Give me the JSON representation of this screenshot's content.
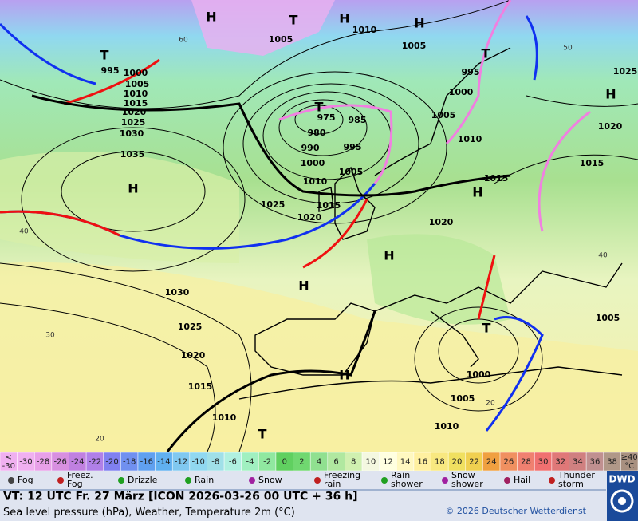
{
  "map": {
    "pressure_labels": [
      1005,
      1010,
      1005,
      995,
      1000,
      1005,
      1010,
      1015,
      1020,
      1025,
      1030,
      1035,
      975,
      985,
      980,
      990,
      995,
      1000,
      1005,
      1010,
      1015,
      1025,
      1020,
      1020,
      995,
      1000,
      1005,
      1010,
      1015,
      1020,
      1015,
      1025,
      1030,
      1025,
      1020,
      1015,
      1010,
      1000,
      1005,
      1010,
      1005
    ],
    "centers": [
      "H",
      "H",
      "H",
      "H",
      "H",
      "H",
      "H",
      "H",
      "H",
      "T",
      "T",
      "T",
      "T",
      "T",
      "T"
    ],
    "lat_labels": [
      60,
      50,
      40,
      40,
      30,
      20,
      20
    ]
  },
  "scale": {
    "low_label": "<",
    "high_label": "≥40",
    "high_unit": "°C",
    "cells": [
      {
        "value": -30,
        "color": "#f0b0f0"
      },
      {
        "value": -28,
        "color": "#e8a0e8"
      },
      {
        "value": -26,
        "color": "#d890e0"
      },
      {
        "value": -24,
        "color": "#c080e0"
      },
      {
        "value": -22,
        "color": "#b080e8"
      },
      {
        "value": -20,
        "color": "#8080f0"
      },
      {
        "value": -18,
        "color": "#7090f0"
      },
      {
        "value": -16,
        "color": "#60a0f0"
      },
      {
        "value": -14,
        "color": "#60b0f0"
      },
      {
        "value": -12,
        "color": "#80c8f0"
      },
      {
        "value": -10,
        "color": "#90d8f0"
      },
      {
        "value": -8,
        "color": "#a0e0e8"
      },
      {
        "value": -6,
        "color": "#b0f0e0"
      },
      {
        "value": -4,
        "color": "#a0f0c0"
      },
      {
        "value": -2,
        "color": "#90e8a0"
      },
      {
        "value": 0,
        "color": "#60d060"
      },
      {
        "value": 2,
        "color": "#70d870"
      },
      {
        "value": 4,
        "color": "#90e090"
      },
      {
        "value": 6,
        "color": "#b0e8a0"
      },
      {
        "value": 8,
        "color": "#d0f0b0"
      },
      {
        "value": 10,
        "color": "#f4f8e0"
      },
      {
        "value": 12,
        "color": "#ffffe0"
      },
      {
        "value": 14,
        "color": "#fff8c0"
      },
      {
        "value": 16,
        "color": "#fff0a0"
      },
      {
        "value": 18,
        "color": "#f8e880"
      },
      {
        "value": 20,
        "color": "#f0e060"
      },
      {
        "value": 22,
        "color": "#f0d050"
      },
      {
        "value": 24,
        "color": "#f0a040"
      },
      {
        "value": 26,
        "color": "#f09060"
      },
      {
        "value": 28,
        "color": "#f08070"
      },
      {
        "value": 30,
        "color": "#f07070"
      },
      {
        "value": 32,
        "color": "#e07878"
      },
      {
        "value": 34,
        "color": "#d08080"
      },
      {
        "value": 36,
        "color": "#c09090"
      },
      {
        "value": 38,
        "color": "#b09888"
      }
    ]
  },
  "legend": [
    "Fog",
    "Freez. Fog",
    "Drizzle",
    "Rain",
    "Snow",
    "Freezing rain",
    "Rain shower",
    "Snow shower",
    "Hail",
    "Thunder storm"
  ],
  "footer": {
    "valid_time": "VT: 12 UTC Fr.  27 März [ICON 2026-03-26  00 UTC + 36 h]",
    "description": "Sea level pressure (hPa), Weather, Temperature 2m (°C)",
    "copyright": "© 2026 Deutscher Wetterdienst",
    "logo": "DWD"
  }
}
